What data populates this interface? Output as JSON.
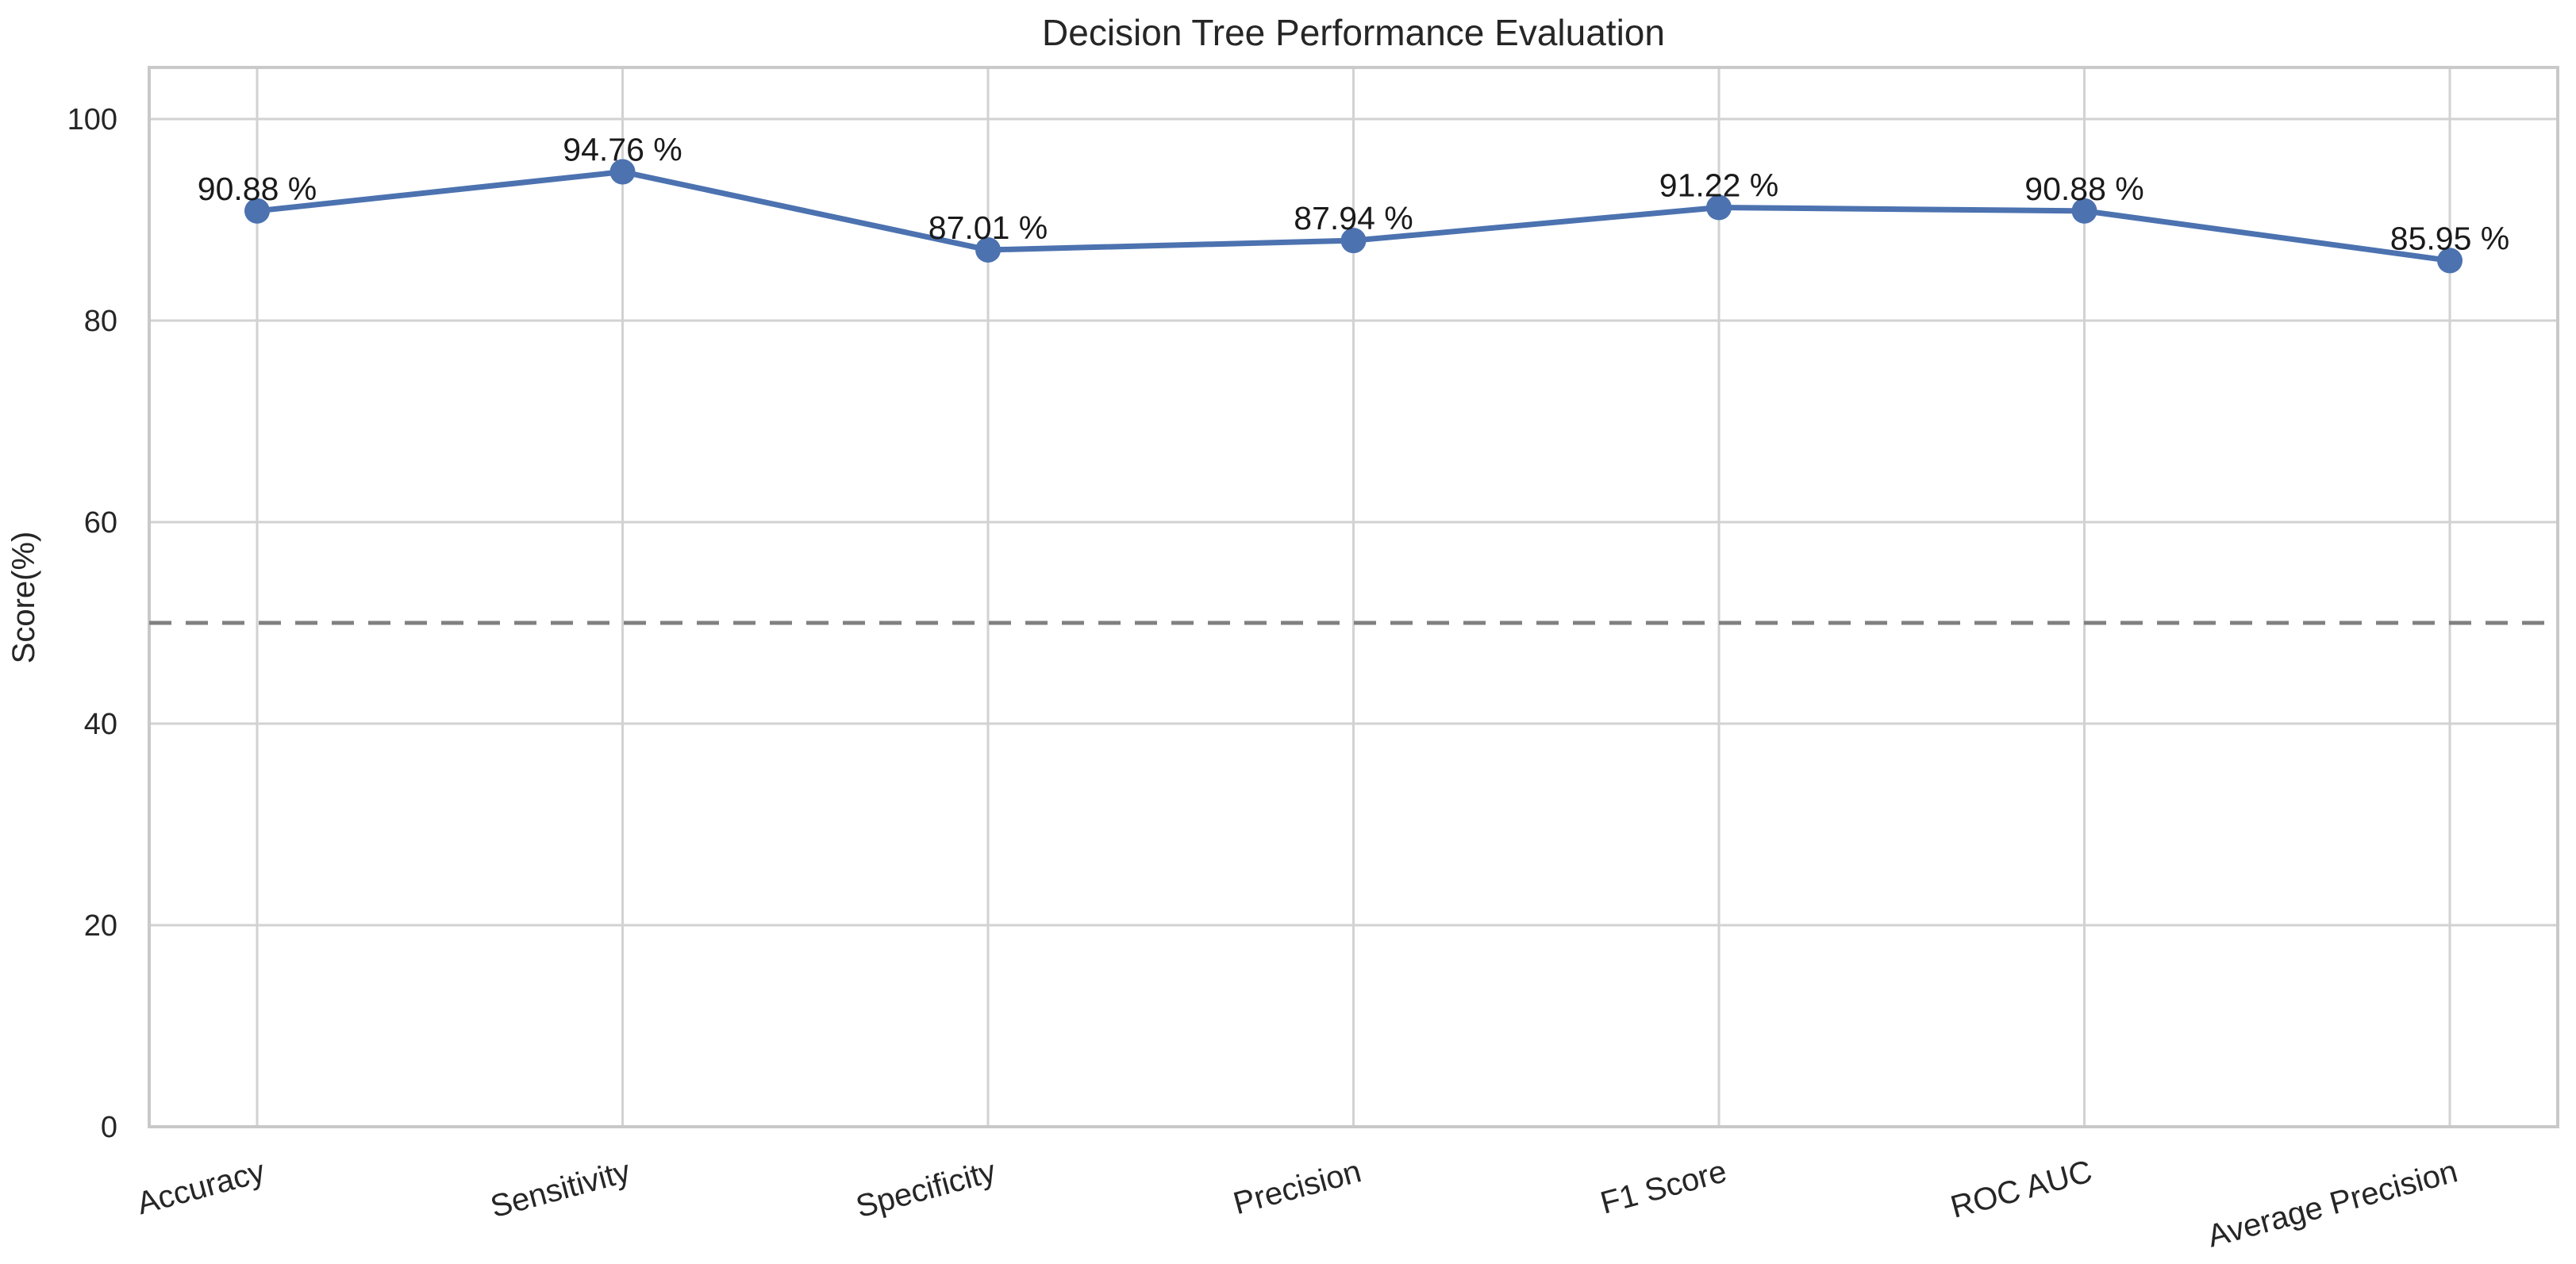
{
  "chart_data": {
    "type": "line",
    "title": "Decision Tree Performance Evaluation",
    "xlabel": "",
    "ylabel": "Score(%)",
    "categories": [
      "Accuracy",
      "Sensitivity",
      "Specificity",
      "Precision",
      "F1 Score",
      "ROC AUC",
      "Average Precision"
    ],
    "series": [
      {
        "name": "Decision Tree",
        "values": [
          90.88,
          94.76,
          87.01,
          87.94,
          91.22,
          90.88,
          85.95
        ]
      }
    ],
    "point_labels": [
      "90.88 %",
      "94.76 %",
      "87.01 %",
      "87.94 %",
      "91.22 %",
      "90.88 %",
      "85.95 %"
    ],
    "yticks": [
      0,
      20,
      40,
      60,
      80,
      100
    ],
    "ytick_labels": [
      "0",
      "20",
      "40",
      "60",
      "80",
      "100"
    ],
    "ylim": [
      0,
      105
    ],
    "grid": true,
    "legend": false,
    "x_tick_rotation_deg": 15,
    "reference_line": {
      "value": 50,
      "style": "dashed"
    }
  },
  "colors": {
    "line": "#4C72B0",
    "marker": "#4C72B0",
    "reference_line": "#808080",
    "grid": "#d2d2d2",
    "frame": "#c9c9c9",
    "text": "#262626",
    "background": "#ffffff"
  }
}
